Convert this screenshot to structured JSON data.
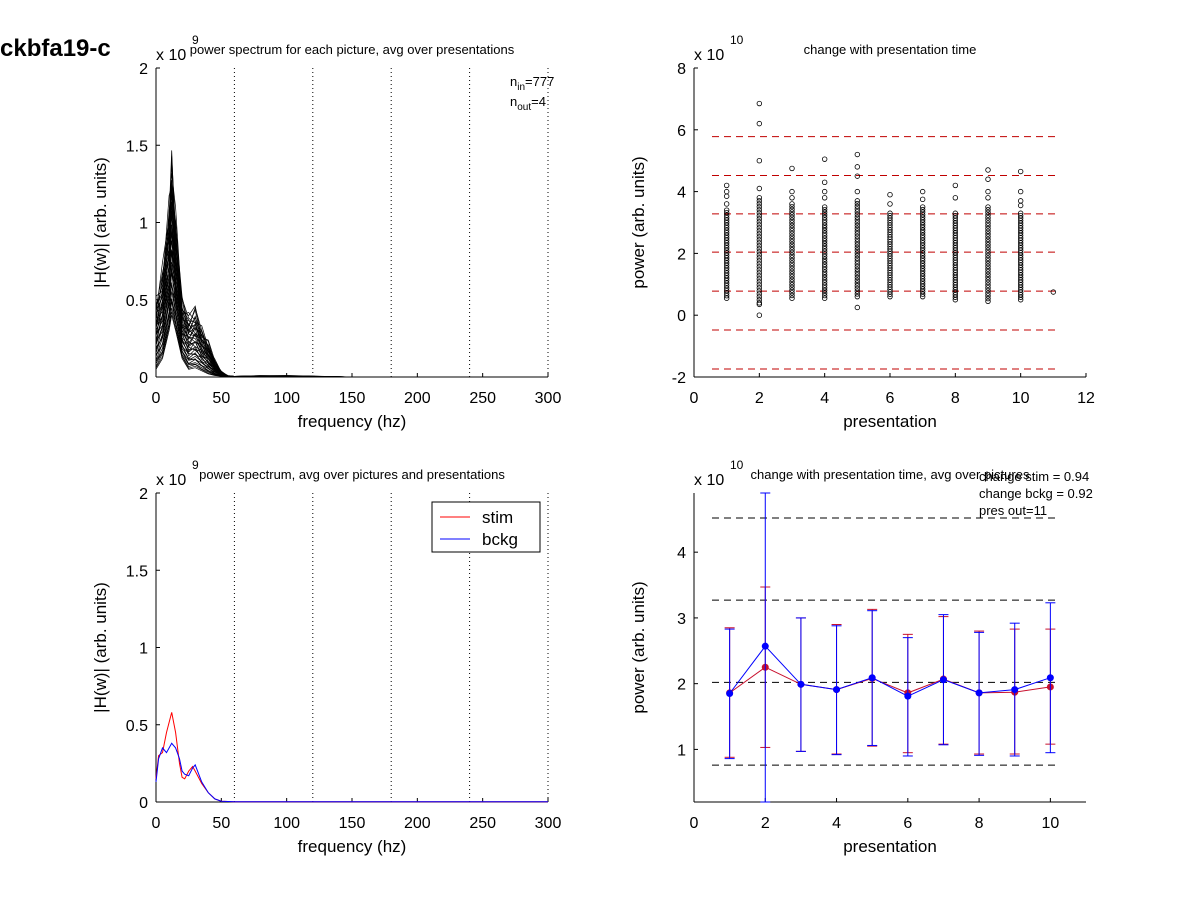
{
  "figure": {
    "title": "ckbfa19-c"
  },
  "chart_data": [
    {
      "id": "p1",
      "type": "line",
      "title": "power spectrum for each picture, avg over presentations",
      "xlabel": "frequency (hz)",
      "ylabel": "|H(w)| (arb. units)",
      "xlim": [
        0,
        300
      ],
      "ylim": [
        0,
        2
      ],
      "xticks": [
        0,
        50,
        100,
        150,
        200,
        250,
        300
      ],
      "yticks": [
        0,
        0.5,
        1,
        1.5,
        2
      ],
      "ytick_labels": [
        "0",
        "0.5",
        "1",
        "1.5",
        "2"
      ],
      "exponent": "x 10",
      "exponent_power": "9",
      "vlines": [
        60,
        120,
        180,
        240,
        300
      ],
      "annotation": {
        "n_in_label": "n",
        "n_in_sub": "in",
        "n_in_value": "=777",
        "n_out_label": "n",
        "n_out_sub": "out",
        "n_out_value": "=4"
      },
      "curve_frequencies": [
        0,
        5,
        10,
        12,
        15,
        20,
        25,
        30,
        35,
        40,
        45,
        50,
        55,
        60,
        80,
        100,
        150,
        200,
        250,
        300
      ],
      "curve_envelope": {
        "max": [
          0.55,
          0.75,
          1.2,
          1.58,
          1.1,
          0.55,
          0.45,
          0.48,
          0.35,
          0.25,
          0.12,
          0.04,
          0.01,
          0.005,
          0.01,
          0.01,
          0.0,
          0.0,
          0.0,
          0.0
        ],
        "min": [
          0.05,
          0.12,
          0.3,
          0.4,
          0.3,
          0.12,
          0.05,
          0.06,
          0.04,
          0.02,
          0.01,
          0.005,
          0.0,
          0.0,
          0.0,
          0.0,
          0.0,
          0.0,
          0.0,
          0.0
        ]
      },
      "n_curves": 40
    },
    {
      "id": "p2",
      "type": "scatter",
      "title": "change with presentation time",
      "xlabel": "presentation",
      "ylabel": "power (arb. units)",
      "xlim": [
        0,
        12
      ],
      "ylim": [
        -2,
        8
      ],
      "xticks": [
        0,
        2,
        4,
        6,
        8,
        10,
        12
      ],
      "yticks": [
        -2,
        0,
        2,
        4,
        6,
        8
      ],
      "exponent": "x 10",
      "exponent_power": "10",
      "hlines": [
        5.78,
        4.52,
        3.28,
        2.04,
        0.78,
        -0.48,
        -1.74
      ],
      "series": [
        {
          "x": 1,
          "min": 0.55,
          "max": 3.4,
          "outliers": [
            3.6,
            3.85,
            4.0,
            4.2
          ]
        },
        {
          "x": 2,
          "min": 0.4,
          "max": 3.8,
          "outliers": [
            0.0,
            0.35,
            4.1,
            5.0,
            6.2,
            6.85
          ]
        },
        {
          "x": 3,
          "min": 0.55,
          "max": 3.6,
          "outliers": [
            3.8,
            4.0,
            4.75
          ]
        },
        {
          "x": 4,
          "min": 0.55,
          "max": 3.5,
          "outliers": [
            3.8,
            4.0,
            4.3,
            5.05
          ]
        },
        {
          "x": 5,
          "min": 0.6,
          "max": 3.7,
          "outliers": [
            0.25,
            4.0,
            4.5,
            4.8,
            5.2
          ]
        },
        {
          "x": 6,
          "min": 0.6,
          "max": 3.3,
          "outliers": [
            3.6,
            3.9
          ]
        },
        {
          "x": 7,
          "min": 0.6,
          "max": 3.5,
          "outliers": [
            3.75,
            4.0
          ]
        },
        {
          "x": 8,
          "min": 0.5,
          "max": 3.3,
          "outliers": [
            3.8,
            4.2
          ]
        },
        {
          "x": 9,
          "min": 0.45,
          "max": 3.5,
          "outliers": [
            3.8,
            4.0,
            4.4,
            4.7
          ]
        },
        {
          "x": 10,
          "min": 0.5,
          "max": 3.3,
          "outliers": [
            3.55,
            3.7,
            4.0,
            4.65
          ]
        },
        {
          "x": 11,
          "min": 0.75,
          "max": 0.75,
          "outliers": []
        }
      ]
    },
    {
      "id": "p3",
      "type": "line",
      "title": "power spectrum, avg over pictures and presentations",
      "xlabel": "frequency (hz)",
      "ylabel": "|H(w)| (arb. units)",
      "xlim": [
        0,
        300
      ],
      "ylim": [
        0,
        2
      ],
      "xticks": [
        0,
        50,
        100,
        150,
        200,
        250,
        300
      ],
      "yticks": [
        0,
        0.5,
        1,
        1.5,
        2
      ],
      "ytick_labels": [
        "0",
        "0.5",
        "1",
        "1.5",
        "2"
      ],
      "exponent": "x 10",
      "exponent_power": "9",
      "vlines": [
        60,
        120,
        180,
        240,
        300
      ],
      "legend": "top-right",
      "x": [
        0,
        2,
        5,
        8,
        12,
        15,
        18,
        20,
        22,
        25,
        28,
        30,
        35,
        40,
        45,
        50,
        55,
        60,
        80,
        100,
        150,
        200,
        250,
        300
      ],
      "series": [
        {
          "name": "stim",
          "color": "#ff0000",
          "values": [
            0.15,
            0.3,
            0.32,
            0.45,
            0.58,
            0.45,
            0.25,
            0.16,
            0.15,
            0.2,
            0.23,
            0.2,
            0.12,
            0.06,
            0.02,
            0.005,
            0.003,
            0.002,
            0.002,
            0.002,
            0.001,
            0.001,
            0.001,
            0.001
          ]
        },
        {
          "name": "bckg",
          "color": "#0000ff",
          "values": [
            0.13,
            0.28,
            0.35,
            0.32,
            0.38,
            0.35,
            0.28,
            0.2,
            0.18,
            0.17,
            0.22,
            0.24,
            0.13,
            0.06,
            0.02,
            0.005,
            0.003,
            0.002,
            0.002,
            0.002,
            0.001,
            0.001,
            0.001,
            0.001
          ]
        }
      ]
    },
    {
      "id": "p4",
      "type": "line",
      "title": "change with presentation time, avg over pictures",
      "xlabel": "presentation",
      "ylabel": "power (arb. units)",
      "xlim": [
        0,
        11
      ],
      "ylim": [
        0.2,
        4.9
      ],
      "xticks": [
        0,
        2,
        4,
        6,
        8,
        10
      ],
      "yticks": [
        1,
        2,
        3,
        4
      ],
      "exponent": "x 10",
      "exponent_power": "10",
      "hlines": [
        4.52,
        3.27,
        2.02,
        0.76
      ],
      "annotations": [
        "change stim = 0.94",
        "change bckg = 0.92",
        "pres out=11"
      ],
      "x": [
        1,
        2,
        3,
        4,
        5,
        6,
        7,
        8,
        9,
        10
      ],
      "series": [
        {
          "name": "stim",
          "color": "#c8102e",
          "values": [
            1.86,
            2.25,
            1.99,
            1.91,
            2.08,
            1.86,
            2.07,
            1.86,
            1.87,
            1.95
          ],
          "err_low": [
            0.88,
            1.03,
            0.97,
            0.93,
            1.05,
            0.95,
            1.08,
            0.93,
            0.93,
            1.08
          ],
          "err_high": [
            2.85,
            3.47,
            3.0,
            2.9,
            3.13,
            2.75,
            3.02,
            2.8,
            2.83,
            2.83
          ]
        },
        {
          "name": "bckg",
          "color": "#0000ff",
          "values": [
            1.85,
            2.57,
            1.99,
            1.91,
            2.09,
            1.81,
            2.06,
            1.86,
            1.91,
            2.09
          ],
          "err_low": [
            0.86,
            0.2,
            0.97,
            0.92,
            1.06,
            0.9,
            1.07,
            0.91,
            0.9,
            0.95
          ],
          "err_high": [
            2.83,
            4.9,
            3.0,
            2.88,
            3.11,
            2.7,
            3.05,
            2.78,
            2.92,
            3.23
          ]
        }
      ]
    }
  ]
}
